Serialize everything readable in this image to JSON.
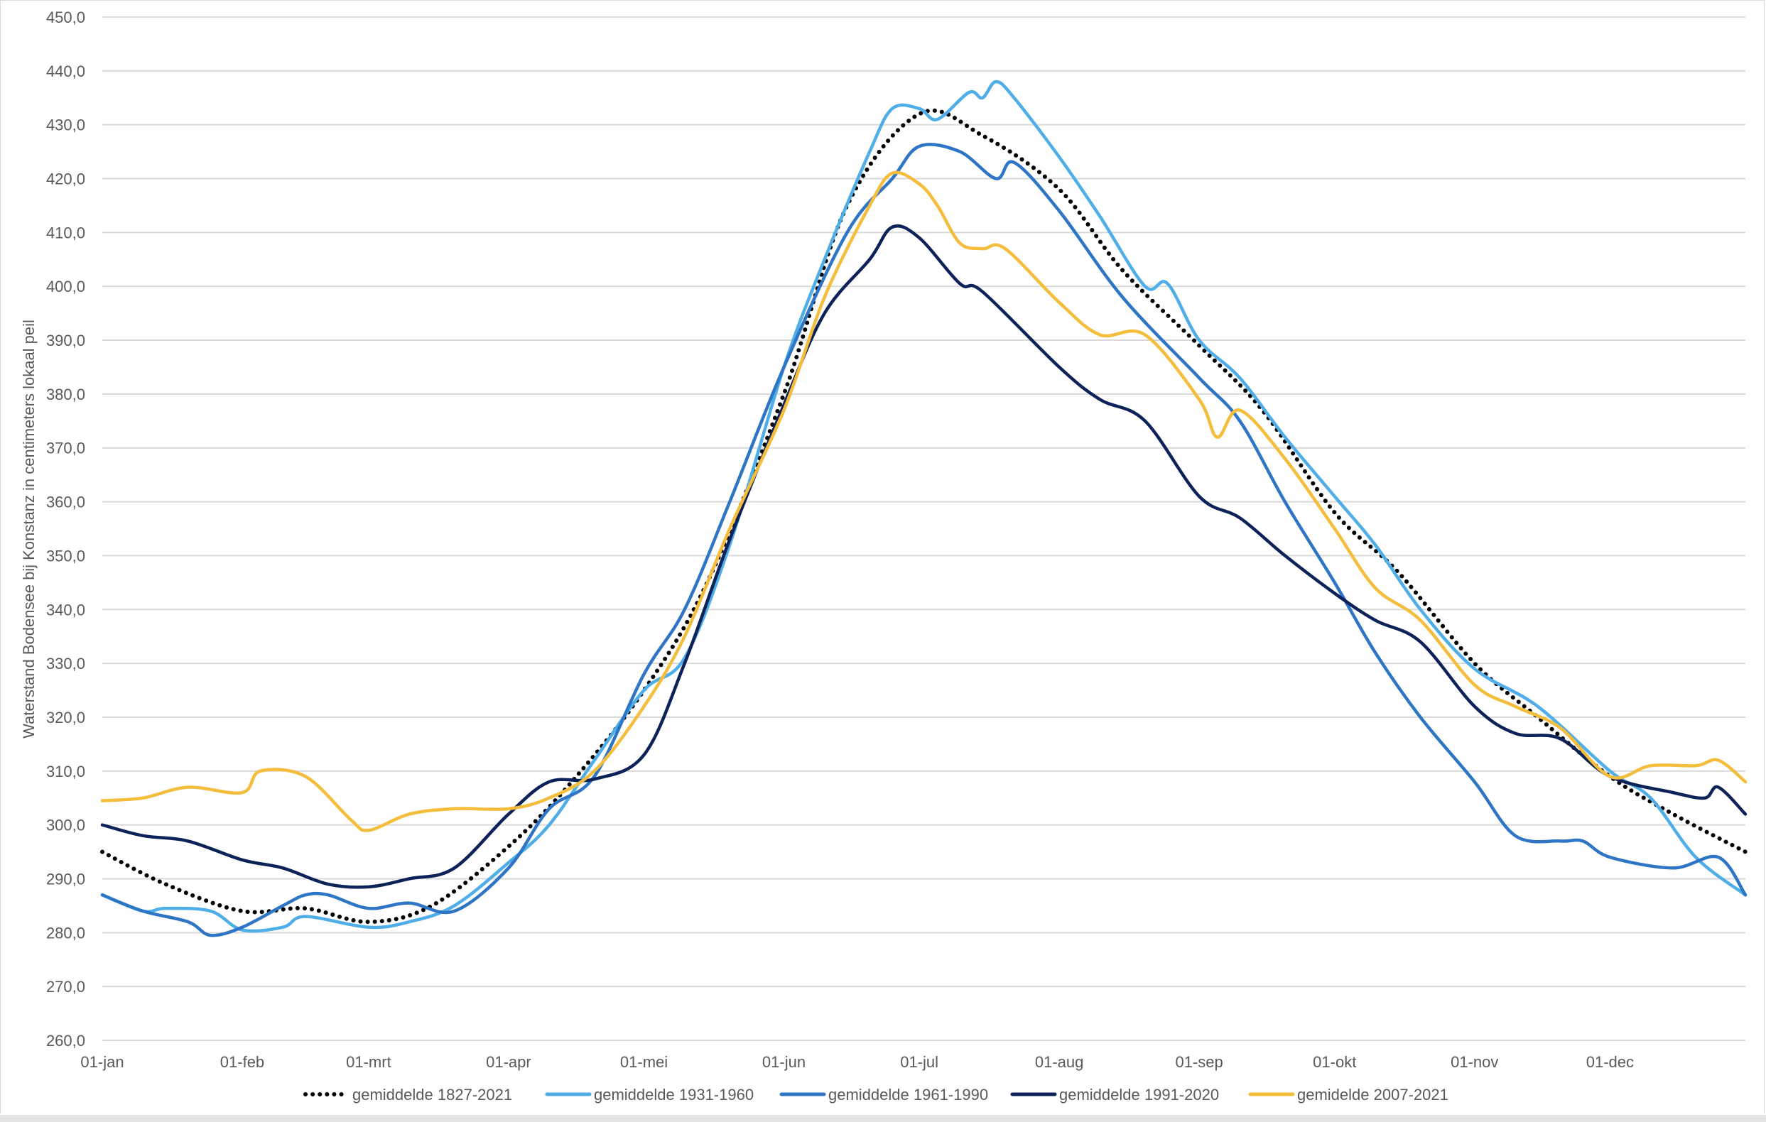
{
  "chart_data": {
    "type": "line",
    "title": "",
    "ylabel": "Waterstand Bodensee bij Konstanz in centimeters lokaal peil",
    "xlabel": "",
    "ylim": [
      260,
      450
    ],
    "yticks": [
      "260,0",
      "270,0",
      "280,0",
      "290,0",
      "300,0",
      "310,0",
      "320,0",
      "330,0",
      "340,0",
      "350,0",
      "360,0",
      "370,0",
      "380,0",
      "390,0",
      "400,0",
      "410,0",
      "420,0",
      "430,0",
      "440,0",
      "450,0"
    ],
    "xticks": [
      "01-jan",
      "01-feb",
      "01-mrt",
      "01-apr",
      "01-mei",
      "01-jun",
      "01-jul",
      "01-aug",
      "01-sep",
      "01-okt",
      "01-nov",
      "01-dec"
    ],
    "grid": "horizontal",
    "legend_position": "bottom",
    "series": [
      {
        "name": "gemiddelde 1827-2021",
        "color": "#000000",
        "style": "dotted",
        "points": [
          [
            "01-jan",
            295
          ],
          [
            "15-jan",
            289
          ],
          [
            "01-feb",
            284
          ],
          [
            "15-feb",
            284.5
          ],
          [
            "01-mrt",
            282
          ],
          [
            "15-mrt",
            285
          ],
          [
            "01-apr",
            296
          ],
          [
            "15-apr",
            308
          ],
          [
            "01-mei",
            325
          ],
          [
            "15-mei",
            345
          ],
          [
            "01-jun",
            380
          ],
          [
            "15-jun",
            415
          ],
          [
            "01-jul",
            432
          ],
          [
            "15-jul",
            428
          ],
          [
            "01-aug",
            418
          ],
          [
            "15-aug",
            403
          ],
          [
            "01-sep",
            389
          ],
          [
            "15-sep",
            377
          ],
          [
            "01-okt",
            358
          ],
          [
            "15-okt",
            347
          ],
          [
            "01-nov",
            330
          ],
          [
            "15-nov",
            320
          ],
          [
            "01-dec",
            309
          ],
          [
            "15-dec",
            302
          ],
          [
            "31-dec",
            295
          ]
        ]
      },
      {
        "name": "gemiddelde 1931-1960",
        "color": "#4faee8",
        "style": "solid",
        "points": [
          [
            "01-jan",
            287
          ],
          [
            "10-jan",
            284
          ],
          [
            "15-jan",
            284.5
          ],
          [
            "25-jan",
            284
          ],
          [
            "01-feb",
            280.5
          ],
          [
            "10-feb",
            281
          ],
          [
            "15-feb",
            283
          ],
          [
            "01-mrt",
            281
          ],
          [
            "10-mrt",
            282
          ],
          [
            "20-mrt",
            285
          ],
          [
            "01-apr",
            293
          ],
          [
            "10-apr",
            300
          ],
          [
            "20-apr",
            312
          ],
          [
            "01-mei",
            325
          ],
          [
            "10-mei",
            331
          ],
          [
            "20-mei",
            352
          ],
          [
            "01-jun",
            385
          ],
          [
            "10-jun",
            405
          ],
          [
            "20-jun",
            425
          ],
          [
            "25-jun",
            433
          ],
          [
            "01-jul",
            433
          ],
          [
            "05-jul",
            431
          ],
          [
            "12-jul",
            436
          ],
          [
            "15-jul",
            435
          ],
          [
            "18-jul",
            438
          ],
          [
            "22-jul",
            435
          ],
          [
            "01-aug",
            424
          ],
          [
            "10-aug",
            413
          ],
          [
            "20-aug",
            400
          ],
          [
            "25-aug",
            400.5
          ],
          [
            "01-sep",
            390
          ],
          [
            "10-sep",
            383
          ],
          [
            "20-sep",
            372
          ],
          [
            "01-okt",
            361
          ],
          [
            "10-okt",
            352
          ],
          [
            "20-okt",
            340
          ],
          [
            "01-nov",
            329
          ],
          [
            "15-nov",
            322
          ],
          [
            "01-dec",
            310
          ],
          [
            "10-dec",
            305
          ],
          [
            "20-dec",
            294
          ],
          [
            "31-dec",
            287
          ]
        ]
      },
      {
        "name": "gemiddelde 1961-1990",
        "color": "#2e75c5",
        "style": "solid",
        "points": [
          [
            "01-jan",
            287
          ],
          [
            "10-jan",
            284
          ],
          [
            "20-jan",
            282
          ],
          [
            "25-jan",
            279.5
          ],
          [
            "01-feb",
            281
          ],
          [
            "10-feb",
            285
          ],
          [
            "15-feb",
            287
          ],
          [
            "20-feb",
            287
          ],
          [
            "01-mrt",
            284.5
          ],
          [
            "10-mrt",
            285.5
          ],
          [
            "20-mrt",
            284
          ],
          [
            "01-apr",
            292
          ],
          [
            "10-apr",
            303
          ],
          [
            "20-apr",
            309
          ],
          [
            "01-mei",
            328
          ],
          [
            "10-mei",
            340
          ],
          [
            "20-mei",
            360
          ],
          [
            "01-jun",
            385
          ],
          [
            "15-jun",
            410
          ],
          [
            "25-jun",
            420
          ],
          [
            "01-jul",
            426
          ],
          [
            "10-jul",
            425
          ],
          [
            "18-jul",
            420
          ],
          [
            "22-jul",
            423
          ],
          [
            "01-aug",
            414
          ],
          [
            "15-aug",
            398
          ],
          [
            "01-sep",
            383
          ],
          [
            "10-sep",
            375
          ],
          [
            "20-sep",
            360
          ],
          [
            "01-okt",
            345
          ],
          [
            "10-okt",
            332
          ],
          [
            "20-okt",
            320
          ],
          [
            "01-nov",
            308
          ],
          [
            "10-nov",
            298
          ],
          [
            "20-nov",
            297
          ],
          [
            "25-nov",
            297
          ],
          [
            "01-dec",
            294
          ],
          [
            "15-dec",
            292
          ],
          [
            "25-dec",
            294
          ],
          [
            "31-dec",
            287
          ]
        ]
      },
      {
        "name": "gemiddelde 1991-2020",
        "color": "#0d2259",
        "style": "solid",
        "points": [
          [
            "01-jan",
            300
          ],
          [
            "10-jan",
            298
          ],
          [
            "20-jan",
            297
          ],
          [
            "01-feb",
            293.5
          ],
          [
            "10-feb",
            292
          ],
          [
            "20-feb",
            289
          ],
          [
            "01-mrt",
            288.5
          ],
          [
            "10-mrt",
            290
          ],
          [
            "20-mrt",
            292
          ],
          [
            "01-apr",
            302
          ],
          [
            "10-apr",
            308
          ],
          [
            "20-apr",
            308.5
          ],
          [
            "01-mei",
            313
          ],
          [
            "10-mei",
            330
          ],
          [
            "20-mei",
            353
          ],
          [
            "01-jun",
            378
          ],
          [
            "10-jun",
            395
          ],
          [
            "20-jun",
            405
          ],
          [
            "25-jun",
            411
          ],
          [
            "01-jul",
            409
          ],
          [
            "10-jul",
            400.5
          ],
          [
            "15-jul",
            399
          ],
          [
            "01-aug",
            385
          ],
          [
            "10-aug",
            379
          ],
          [
            "20-aug",
            375
          ],
          [
            "01-sep",
            361
          ],
          [
            "10-sep",
            357
          ],
          [
            "20-sep",
            350
          ],
          [
            "01-okt",
            343
          ],
          [
            "10-okt",
            338
          ],
          [
            "20-okt",
            334
          ],
          [
            "01-nov",
            322
          ],
          [
            "10-nov",
            317
          ],
          [
            "20-nov",
            316
          ],
          [
            "01-dec",
            309
          ],
          [
            "15-dec",
            306
          ],
          [
            "22-dec",
            305
          ],
          [
            "25-dec",
            307
          ],
          [
            "31-dec",
            302
          ]
        ]
      },
      {
        "name": "gemidelde 2007-2021",
        "color": "#f5bd3c",
        "style": "solid",
        "points": [
          [
            "01-jan",
            304.5
          ],
          [
            "10-jan",
            305
          ],
          [
            "20-jan",
            307
          ],
          [
            "01-feb",
            306
          ],
          [
            "05-feb",
            310
          ],
          [
            "15-feb",
            309
          ],
          [
            "25-feb",
            301
          ],
          [
            "01-mrt",
            299
          ],
          [
            "10-mrt",
            302
          ],
          [
            "20-mrt",
            303
          ],
          [
            "01-apr",
            303
          ],
          [
            "10-apr",
            305
          ],
          [
            "20-apr",
            310
          ],
          [
            "01-mei",
            322
          ],
          [
            "10-mei",
            335
          ],
          [
            "20-mei",
            355
          ],
          [
            "01-jun",
            377
          ],
          [
            "10-jun",
            398
          ],
          [
            "20-jun",
            415
          ],
          [
            "25-jun",
            421
          ],
          [
            "01-jul",
            419
          ],
          [
            "05-jul",
            415
          ],
          [
            "10-jul",
            408
          ],
          [
            "15-jul",
            407
          ],
          [
            "20-jul",
            407
          ],
          [
            "01-aug",
            397
          ],
          [
            "10-aug",
            391
          ],
          [
            "20-aug",
            391
          ],
          [
            "01-sep",
            379
          ],
          [
            "05-sep",
            372
          ],
          [
            "10-sep",
            377
          ],
          [
            "20-sep",
            368
          ],
          [
            "01-okt",
            355
          ],
          [
            "10-okt",
            344
          ],
          [
            "20-okt",
            338
          ],
          [
            "01-nov",
            326
          ],
          [
            "10-nov",
            322
          ],
          [
            "20-nov",
            318
          ],
          [
            "01-dec",
            309
          ],
          [
            "10-dec",
            311
          ],
          [
            "20-dec",
            311
          ],
          [
            "25-dec",
            312
          ],
          [
            "31-dec",
            308
          ]
        ]
      }
    ]
  }
}
